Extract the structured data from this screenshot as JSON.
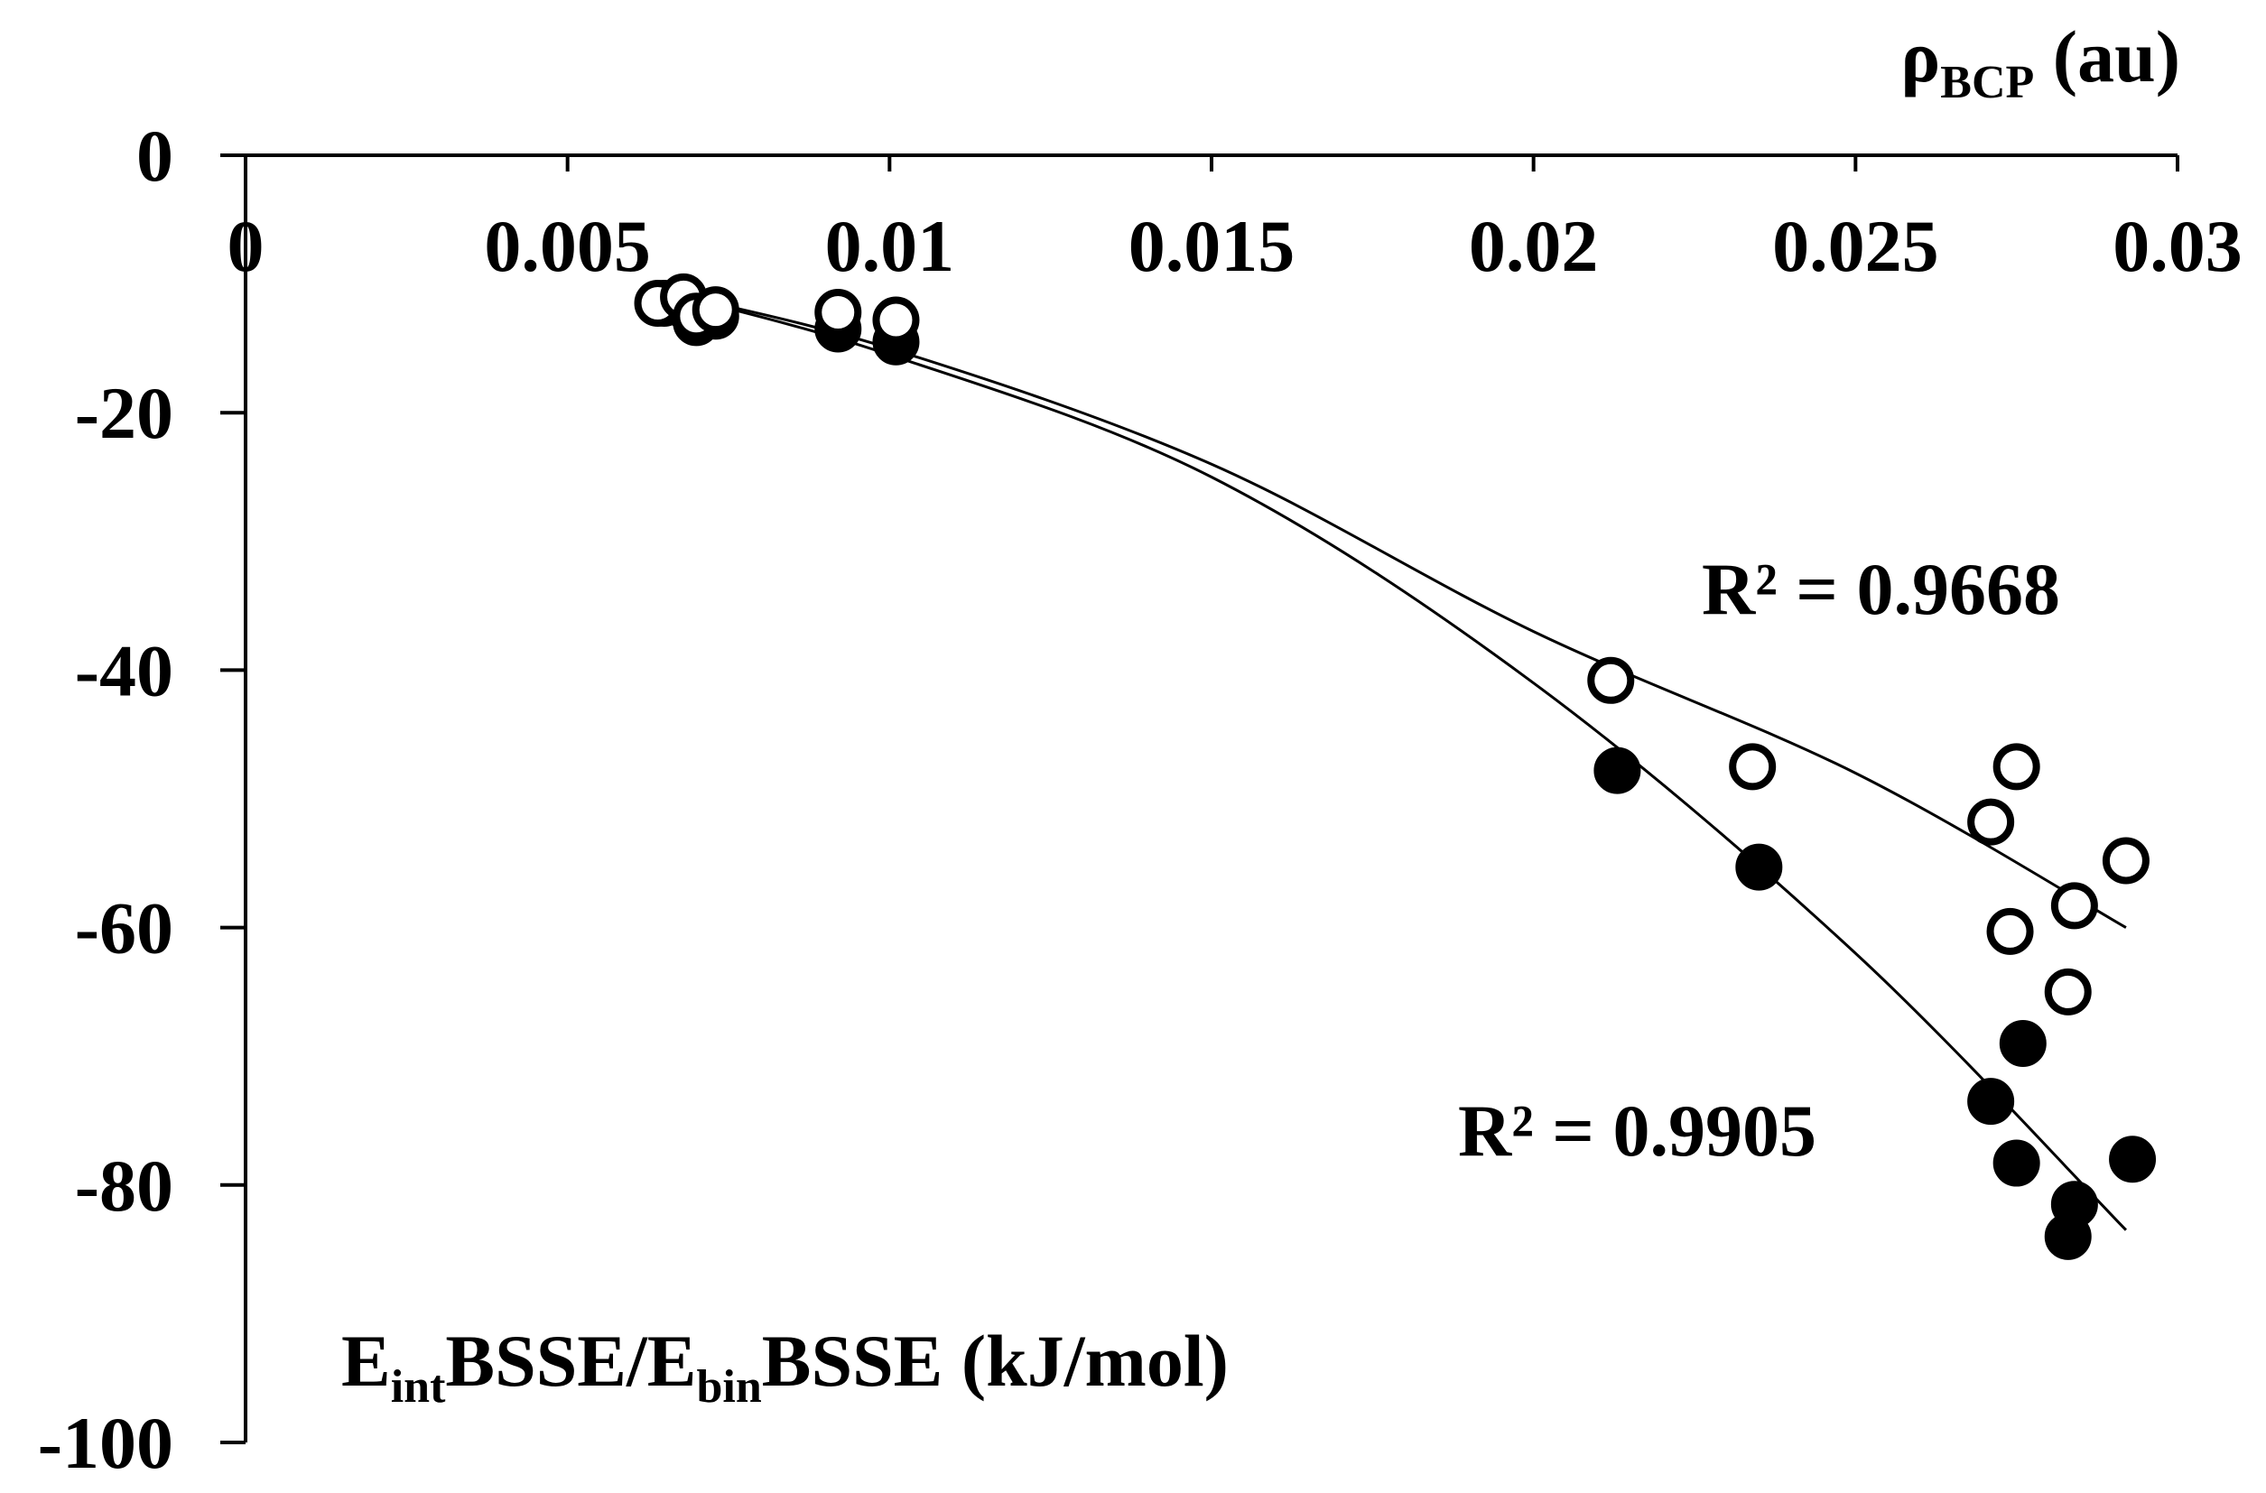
{
  "chart_data": {
    "type": "scatter",
    "title": "",
    "xlabel": {
      "main": "ρ",
      "sub": "BCP",
      "unit": " (au)"
    },
    "ylabel": {
      "p1": "E",
      "s1": "int",
      "p2": "BSSE/E",
      "s2": "bin",
      "p3": "BSSE (kJ/mol)"
    },
    "xlim": [
      0,
      0.03
    ],
    "ylim": [
      -100,
      0
    ],
    "x_ticks": [
      0,
      0.005,
      0.01,
      0.015,
      0.02,
      0.025,
      0.03
    ],
    "x_tick_labels": [
      "0",
      "0.005",
      "0.01",
      "0.015",
      "0.02",
      "0.025",
      "0.03"
    ],
    "y_ticks": [
      0,
      -20,
      -40,
      -60,
      -80,
      -100
    ],
    "y_tick_labels": [
      "0",
      "-20",
      "-40",
      "-60",
      "-80",
      "-100"
    ],
    "grid": false,
    "x_axis_position": "top",
    "series": [
      {
        "name": "Eint BSSE",
        "marker": "open-circle",
        "r2_label": "R² = 0.9668",
        "x": [
          0.0064,
          0.0068,
          0.007,
          0.0073,
          0.0092,
          0.0101,
          0.0212,
          0.0234,
          0.0271,
          0.0274,
          0.0275,
          0.0283,
          0.0284,
          0.0292
        ],
        "y": [
          -11.5,
          -11.0,
          -12.5,
          -12.0,
          -12.2,
          -12.8,
          -40.8,
          -47.5,
          -51.8,
          -60.3,
          -47.5,
          -65.0,
          -58.3,
          -54.8
        ],
        "trend": {
          "kind": "poly2",
          "x_range": [
            0.0064,
            0.0292
          ],
          "x": [
            0.0064,
            0.01,
            0.015,
            0.02,
            0.025,
            0.0292
          ],
          "y": [
            -10.5,
            -15.0,
            -24.0,
            -37.0,
            -48.0,
            -60.0
          ]
        }
      },
      {
        "name": "Ebin BSSE",
        "marker": "filled-circle",
        "r2_label": "R² = 0.9905",
        "x": [
          0.0065,
          0.0069,
          0.007,
          0.0073,
          0.0092,
          0.0101,
          0.0213,
          0.0235,
          0.0271,
          0.0275,
          0.0276,
          0.0283,
          0.0284,
          0.0293
        ],
        "y": [
          -11.5,
          -12.0,
          -13.0,
          -12.5,
          -13.5,
          -14.5,
          -47.8,
          -55.3,
          -73.5,
          -78.3,
          -69.0,
          -84.0,
          -81.5,
          -78.0
        ],
        "trend": {
          "kind": "poly2",
          "x_range": [
            0.0064,
            0.0292
          ],
          "x": [
            0.0064,
            0.01,
            0.015,
            0.02,
            0.025,
            0.0292
          ],
          "y": [
            -10.5,
            -15.5,
            -25.0,
            -41.0,
            -62.0,
            -83.5
          ]
        }
      }
    ]
  }
}
